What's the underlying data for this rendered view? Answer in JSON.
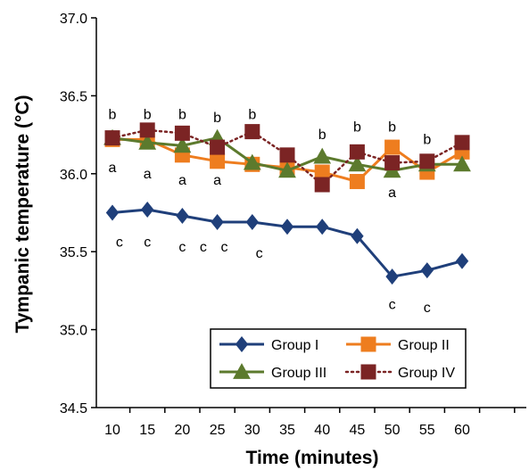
{
  "chart_data": {
    "type": "line",
    "xlabel": "Time (minutes)",
    "ylabel": "Tympanic temperature (°C)",
    "x": [
      10,
      15,
      20,
      25,
      30,
      35,
      40,
      45,
      50,
      55,
      60
    ],
    "ylim": [
      34.5,
      37.0
    ],
    "yticks": [
      "34.5",
      "35.0",
      "35.5",
      "36.0",
      "36.5",
      "37.0"
    ],
    "legend_position": "bottom-right",
    "series": [
      {
        "name": "Group I",
        "color": "#1f3f7a",
        "marker": "diamond",
        "dash": "solid",
        "values": [
          35.75,
          35.77,
          35.73,
          35.69,
          35.69,
          35.66,
          35.66,
          35.6,
          35.34,
          35.38,
          35.44
        ]
      },
      {
        "name": "Group II",
        "color": "#ee7d1f",
        "marker": "square",
        "dash": "solid",
        "values": [
          36.22,
          36.22,
          36.12,
          36.08,
          36.06,
          36.04,
          36.01,
          35.95,
          36.17,
          36.01,
          36.14
        ]
      },
      {
        "name": "Group III",
        "color": "#5c7a2d",
        "marker": "triangle",
        "dash": "solid",
        "values": [
          36.23,
          36.2,
          36.18,
          36.23,
          36.07,
          36.02,
          36.11,
          36.06,
          36.02,
          36.06,
          36.06
        ]
      },
      {
        "name": "Group IV",
        "color": "#7b2424",
        "marker": "square",
        "dash": "dotted",
        "values": [
          36.23,
          36.28,
          36.26,
          36.17,
          36.27,
          36.12,
          35.93,
          36.14,
          36.07,
          36.08,
          36.2
        ]
      }
    ],
    "annotations": [
      {
        "text": "b",
        "x": 10,
        "y": 36.38
      },
      {
        "text": "b",
        "x": 15,
        "y": 36.38
      },
      {
        "text": "b",
        "x": 20,
        "y": 36.38
      },
      {
        "text": "b",
        "x": 25,
        "y": 36.36
      },
      {
        "text": "b",
        "x": 30,
        "y": 36.38
      },
      {
        "text": "b",
        "x": 40,
        "y": 36.25
      },
      {
        "text": "b",
        "x": 45,
        "y": 36.3
      },
      {
        "text": "b",
        "x": 50,
        "y": 36.3
      },
      {
        "text": "b",
        "x": 55,
        "y": 36.22
      },
      {
        "text": "a",
        "x": 10,
        "y": 36.04
      },
      {
        "text": "a",
        "x": 15,
        "y": 36.0
      },
      {
        "text": "a",
        "x": 20,
        "y": 35.96
      },
      {
        "text": "a",
        "x": 25,
        "y": 35.96
      },
      {
        "text": "a",
        "x": 50,
        "y": 35.88
      },
      {
        "text": "c",
        "x": 11,
        "y": 35.56
      },
      {
        "text": "c",
        "x": 15,
        "y": 35.56
      },
      {
        "text": "c",
        "x": 20,
        "y": 35.53
      },
      {
        "text": "c",
        "x": 23,
        "y": 35.53
      },
      {
        "text": "c",
        "x": 26,
        "y": 35.53
      },
      {
        "text": "c",
        "x": 31,
        "y": 35.49
      },
      {
        "text": "c",
        "x": 50,
        "y": 35.16
      },
      {
        "text": "c",
        "x": 55,
        "y": 35.14
      }
    ]
  }
}
